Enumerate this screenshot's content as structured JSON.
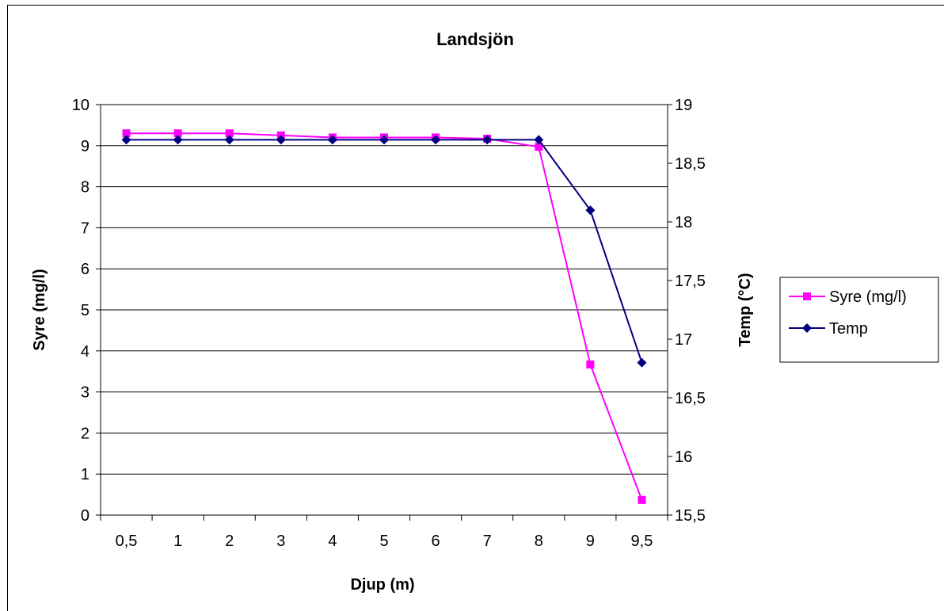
{
  "chart_data": {
    "type": "line",
    "title": "Landsjön",
    "xlabel": "Djup (m)",
    "ylabel": "Syre (mg/l)",
    "y2label": "Temp (°C)",
    "categories": [
      "0,5",
      "1",
      "2",
      "3",
      "4",
      "5",
      "6",
      "7",
      "8",
      "9",
      "9,5"
    ],
    "ylim": [
      0,
      10
    ],
    "y_ticks": [
      "0",
      "1",
      "2",
      "3",
      "4",
      "5",
      "6",
      "7",
      "8",
      "9",
      "10"
    ],
    "y2lim": [
      15.5,
      19
    ],
    "y2_ticks": [
      "15,5",
      "16",
      "16,5",
      "17",
      "17,5",
      "18",
      "18,5",
      "19"
    ],
    "grid": true,
    "legend_position": "right",
    "series": [
      {
        "name": "Syre (mg/l)",
        "axis": "left",
        "color": "#ff00ff",
        "marker": "square",
        "values": [
          9.3,
          9.3,
          9.3,
          9.25,
          9.2,
          9.2,
          9.2,
          9.17,
          8.97,
          3.67,
          0.37
        ]
      },
      {
        "name": "Temp",
        "axis": "right",
        "color": "#000080",
        "marker": "diamond",
        "values": [
          18.7,
          18.7,
          18.7,
          18.7,
          18.7,
          18.7,
          18.7,
          18.7,
          18.7,
          18.1,
          16.8
        ]
      }
    ]
  }
}
